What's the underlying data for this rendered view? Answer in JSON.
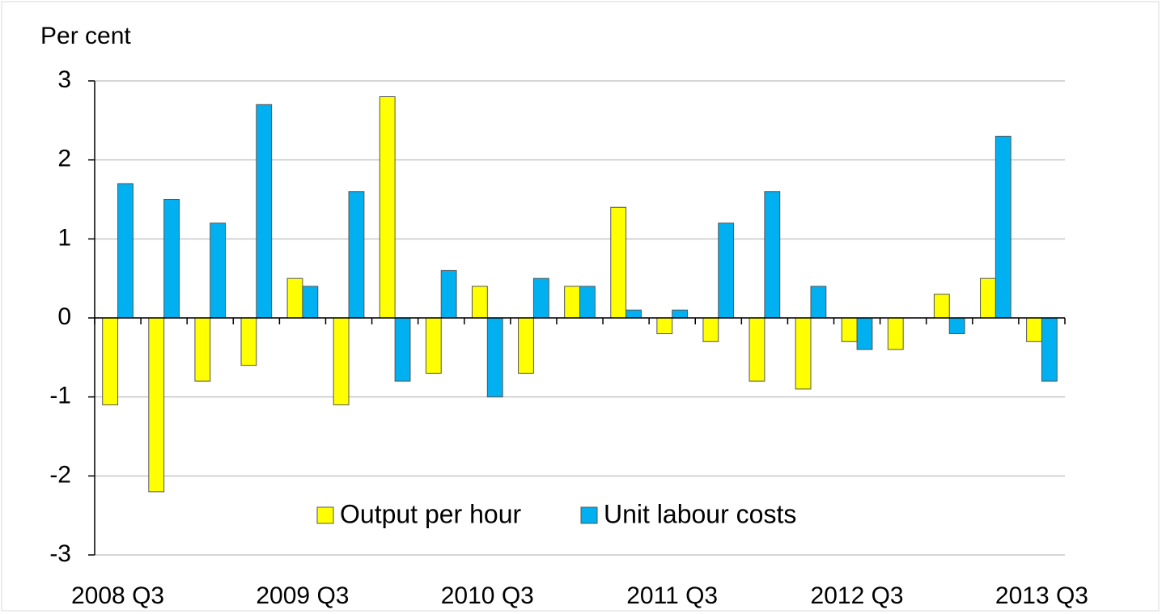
{
  "chart_data": {
    "type": "bar",
    "y_label": "Per cent",
    "categories": [
      "2008 Q3",
      null,
      null,
      null,
      "2009 Q3",
      null,
      null,
      null,
      "2010 Q3",
      null,
      null,
      null,
      "2011 Q3",
      null,
      null,
      null,
      "2012 Q3",
      null,
      null,
      null,
      "2013 Q3"
    ],
    "series": [
      {
        "name": "Output per hour",
        "color": "#ffff00",
        "values": [
          -1.1,
          -2.2,
          -0.8,
          -0.6,
          0.5,
          -1.1,
          2.8,
          -0.7,
          0.4,
          -0.7,
          0.4,
          1.4,
          -0.2,
          -0.3,
          -0.8,
          -0.9,
          -0.3,
          -0.4,
          0.3,
          0.5,
          -0.3
        ]
      },
      {
        "name": "Unit labour costs",
        "color": "#00b0f0",
        "values": [
          1.7,
          1.5,
          1.2,
          2.7,
          0.4,
          1.6,
          -0.8,
          0.6,
          -1.0,
          0.5,
          0.4,
          0.1,
          0.1,
          1.2,
          1.6,
          0.4,
          -0.4,
          0.0,
          -0.2,
          2.3,
          -0.8
        ]
      }
    ],
    "ylim": [
      -3,
      3
    ],
    "yticks": [
      -3,
      -2,
      -1,
      0,
      1,
      2,
      3
    ],
    "grid": true,
    "legend": "bottom"
  }
}
